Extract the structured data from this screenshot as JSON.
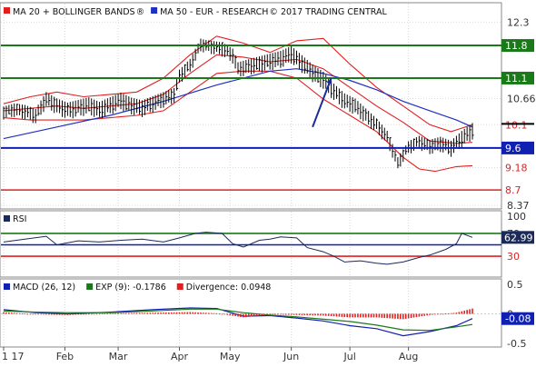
{
  "chart_data": [
    {
      "type": "line",
      "panel": "price",
      "legend": [
        {
          "label": "MA 20 + BOLLINGER BANDS",
          "symbol": "®",
          "color": "#e02020"
        },
        {
          "label": "MA 50 - EUR - RESEARCH",
          "symbol": "© 2017 TRADING CENTRAL",
          "color": "#2030c0"
        }
      ],
      "ylim": [
        8.37,
        12.6
      ],
      "y_ticks": [
        8.37,
        8.7,
        9.18,
        9.6,
        10.1,
        10.66,
        11.1,
        11.8,
        12.3
      ],
      "grid": true,
      "last_price": 9.96,
      "levels": [
        {
          "value": 11.8,
          "label": "11.8",
          "color": "#1a7a1a",
          "style": "box"
        },
        {
          "value": 11.1,
          "label": "11.1",
          "color": "#1a7a1a",
          "style": "box"
        },
        {
          "value": 10.1,
          "label": "10.1",
          "color": "#e02020",
          "style": "text"
        },
        {
          "value": 9.6,
          "label": "9.6",
          "color": "#1020b0",
          "style": "box"
        },
        {
          "value": 9.18,
          "label": "9.18",
          "color": "#e02020",
          "style": "text"
        },
        {
          "value": 8.7,
          "label": "8.7",
          "color": "#e02020",
          "style": "text"
        }
      ],
      "forecast_arrow": {
        "from_day": 116,
        "from_value": 10.05,
        "to_day": 123,
        "to_value": 11.1,
        "color": "#1a2a9a"
      },
      "series": [
        {
          "name": "Price",
          "key": "close",
          "color": "#000000",
          "points": [
            [
              0,
              10.4
            ],
            [
              4,
              10.45
            ],
            [
              8,
              10.4
            ],
            [
              12,
              10.3
            ],
            [
              16,
              10.65
            ],
            [
              20,
              10.5
            ],
            [
              24,
              10.4
            ],
            [
              28,
              10.45
            ],
            [
              32,
              10.5
            ],
            [
              36,
              10.4
            ],
            [
              40,
              10.5
            ],
            [
              44,
              10.6
            ],
            [
              48,
              10.5
            ],
            [
              52,
              10.45
            ],
            [
              56,
              10.55
            ],
            [
              60,
              10.65
            ],
            [
              64,
              10.75
            ],
            [
              66,
              11.15
            ],
            [
              70,
              11.4
            ],
            [
              74,
              11.85
            ],
            [
              78,
              11.8
            ],
            [
              82,
              11.75
            ],
            [
              86,
              11.6
            ],
            [
              88,
              11.3
            ],
            [
              92,
              11.35
            ],
            [
              96,
              11.4
            ],
            [
              100,
              11.45
            ],
            [
              104,
              11.5
            ],
            [
              108,
              11.6
            ],
            [
              112,
              11.4
            ],
            [
              116,
              11.2
            ],
            [
              120,
              11.05
            ],
            [
              124,
              10.8
            ],
            [
              128,
              10.6
            ],
            [
              132,
              10.5
            ],
            [
              136,
              10.3
            ],
            [
              140,
              10.1
            ],
            [
              144,
              9.85
            ],
            [
              148,
              9.3
            ],
            [
              152,
              9.65
            ],
            [
              156,
              9.75
            ],
            [
              160,
              9.65
            ],
            [
              164,
              9.7
            ],
            [
              168,
              9.6
            ],
            [
              172,
              9.8
            ],
            [
              176,
              9.96
            ]
          ]
        },
        {
          "name": "MA 20",
          "key": "ma20",
          "color": "#e02020",
          "points": [
            [
              0,
              10.4
            ],
            [
              10,
              10.45
            ],
            [
              20,
              10.5
            ],
            [
              30,
              10.45
            ],
            [
              40,
              10.5
            ],
            [
              50,
              10.55
            ],
            [
              60,
              10.75
            ],
            [
              70,
              11.2
            ],
            [
              80,
              11.6
            ],
            [
              90,
              11.55
            ],
            [
              100,
              11.45
            ],
            [
              110,
              11.5
            ],
            [
              120,
              11.3
            ],
            [
              130,
              10.9
            ],
            [
              140,
              10.5
            ],
            [
              150,
              10.15
            ],
            [
              160,
              9.75
            ],
            [
              170,
              9.7
            ],
            [
              176,
              9.72
            ]
          ]
        },
        {
          "name": "Upper band",
          "key": "upper",
          "color": "#e02020",
          "points": [
            [
              0,
              10.55
            ],
            [
              10,
              10.7
            ],
            [
              20,
              10.8
            ],
            [
              30,
              10.7
            ],
            [
              40,
              10.75
            ],
            [
              50,
              10.8
            ],
            [
              60,
              11.1
            ],
            [
              70,
              11.6
            ],
            [
              80,
              12.0
            ],
            [
              90,
              11.85
            ],
            [
              100,
              11.65
            ],
            [
              110,
              11.9
            ],
            [
              120,
              11.95
            ],
            [
              130,
              11.4
            ],
            [
              140,
              10.9
            ],
            [
              150,
              10.5
            ],
            [
              160,
              10.1
            ],
            [
              168,
              9.95
            ],
            [
              176,
              10.1
            ]
          ]
        },
        {
          "name": "Lower band",
          "key": "lower",
          "color": "#e02020",
          "points": [
            [
              0,
              10.25
            ],
            [
              10,
              10.2
            ],
            [
              20,
              10.2
            ],
            [
              30,
              10.2
            ],
            [
              40,
              10.25
            ],
            [
              50,
              10.3
            ],
            [
              60,
              10.4
            ],
            [
              70,
              10.8
            ],
            [
              80,
              11.2
            ],
            [
              90,
              11.25
            ],
            [
              100,
              11.25
            ],
            [
              110,
              11.1
            ],
            [
              120,
              10.65
            ],
            [
              130,
              10.3
            ],
            [
              140,
              9.95
            ],
            [
              150,
              9.4
            ],
            [
              156,
              9.15
            ],
            [
              162,
              9.1
            ],
            [
              170,
              9.2
            ],
            [
              176,
              9.22
            ]
          ]
        },
        {
          "name": "MA 50",
          "key": "ma50",
          "color": "#2030c0",
          "points": [
            [
              0,
              9.8
            ],
            [
              20,
              10.05
            ],
            [
              40,
              10.3
            ],
            [
              60,
              10.6
            ],
            [
              80,
              10.95
            ],
            [
              100,
              11.25
            ],
            [
              110,
              11.3
            ],
            [
              120,
              11.2
            ],
            [
              130,
              11.05
            ],
            [
              140,
              10.85
            ],
            [
              150,
              10.6
            ],
            [
              160,
              10.4
            ],
            [
              170,
              10.2
            ],
            [
              176,
              10.05
            ]
          ]
        }
      ]
    },
    {
      "type": "line",
      "panel": "rsi",
      "legend": [
        {
          "label": "RSI",
          "color": "#1a2a5a"
        }
      ],
      "ylim": [
        0,
        100
      ],
      "y_ticks": [
        0,
        30,
        50,
        70,
        100
      ],
      "levels": [
        {
          "value": 70,
          "color": "#1a7a1a"
        },
        {
          "value": 50,
          "color": "#1020b0"
        },
        {
          "value": 30,
          "color": "#e02020"
        }
      ],
      "last_value": 62.99,
      "last_value_label": "62.99",
      "series": [
        {
          "name": "RSI",
          "color": "#1a2a5a",
          "points": [
            [
              0,
              55
            ],
            [
              8,
              60
            ],
            [
              16,
              65
            ],
            [
              20,
              50
            ],
            [
              28,
              57
            ],
            [
              36,
              55
            ],
            [
              44,
              58
            ],
            [
              52,
              60
            ],
            [
              60,
              55
            ],
            [
              66,
              62
            ],
            [
              72,
              70
            ],
            [
              76,
              72
            ],
            [
              82,
              70
            ],
            [
              86,
              52
            ],
            [
              90,
              46
            ],
            [
              96,
              58
            ],
            [
              100,
              60
            ],
            [
              104,
              64
            ],
            [
              110,
              62
            ],
            [
              114,
              45
            ],
            [
              120,
              38
            ],
            [
              124,
              30
            ],
            [
              128,
              20
            ],
            [
              134,
              22
            ],
            [
              140,
              18
            ],
            [
              144,
              16
            ],
            [
              150,
              20
            ],
            [
              156,
              28
            ],
            [
              160,
              32
            ],
            [
              166,
              42
            ],
            [
              170,
              52
            ],
            [
              172,
              70
            ],
            [
              176,
              63
            ]
          ]
        }
      ]
    },
    {
      "type": "bar",
      "panel": "macd",
      "legend": [
        {
          "label": "MACD (26, 12)",
          "color": "#1020b0"
        },
        {
          "label": "EXP (9): -0.1786",
          "color": "#1a7a1a"
        },
        {
          "label": "Divergence: 0.0948",
          "color": "#e02020"
        }
      ],
      "ylim": [
        -0.5,
        0.5
      ],
      "y_ticks": [
        -0.5,
        0,
        0.5
      ],
      "last_value": -0.08,
      "last_value_label": "-0.08",
      "series": [
        {
          "name": "MACD (26, 12)",
          "key": "macd",
          "color": "#1020b0",
          "points": [
            [
              0,
              0.07
            ],
            [
              12,
              0.02
            ],
            [
              24,
              0.0
            ],
            [
              40,
              0.03
            ],
            [
              56,
              0.07
            ],
            [
              70,
              0.1
            ],
            [
              80,
              0.09
            ],
            [
              90,
              -0.04
            ],
            [
              100,
              -0.03
            ],
            [
              110,
              -0.07
            ],
            [
              120,
              -0.12
            ],
            [
              130,
              -0.2
            ],
            [
              140,
              -0.25
            ],
            [
              150,
              -0.37
            ],
            [
              160,
              -0.3
            ],
            [
              170,
              -0.2
            ],
            [
              176,
              -0.08
            ]
          ]
        },
        {
          "name": "EXP (9)",
          "key": "exp",
          "color": "#1a7a1a",
          "points": [
            [
              0,
              0.05
            ],
            [
              12,
              0.03
            ],
            [
              24,
              0.02
            ],
            [
              40,
              0.02
            ],
            [
              56,
              0.05
            ],
            [
              70,
              0.08
            ],
            [
              80,
              0.08
            ],
            [
              90,
              0.02
            ],
            [
              100,
              -0.02
            ],
            [
              110,
              -0.05
            ],
            [
              120,
              -0.09
            ],
            [
              130,
              -0.13
            ],
            [
              140,
              -0.19
            ],
            [
              150,
              -0.27
            ],
            [
              160,
              -0.28
            ],
            [
              170,
              -0.22
            ],
            [
              176,
              -0.18
            ]
          ]
        },
        {
          "name": "Divergence",
          "key": "div",
          "color": "#e02020",
          "bars": true,
          "points": [
            [
              0,
              0.03
            ],
            [
              12,
              -0.01
            ],
            [
              24,
              -0.02
            ],
            [
              40,
              0.01
            ],
            [
              56,
              0.02
            ],
            [
              70,
              0.03
            ],
            [
              80,
              0.01
            ],
            [
              90,
              -0.06
            ],
            [
              100,
              -0.01
            ],
            [
              110,
              -0.02
            ],
            [
              120,
              -0.03
            ],
            [
              130,
              -0.06
            ],
            [
              140,
              -0.06
            ],
            [
              150,
              -0.09
            ],
            [
              160,
              -0.02
            ],
            [
              170,
              0.02
            ],
            [
              176,
              0.09
            ]
          ]
        }
      ]
    }
  ],
  "x_axis": {
    "labels": [
      {
        "text": "1 17",
        "day": 0
      },
      {
        "text": "Feb",
        "day": 23
      },
      {
        "text": "Mar",
        "day": 43
      },
      {
        "text": "Apr",
        "day": 66
      },
      {
        "text": "May",
        "day": 85
      },
      {
        "text": "Jun",
        "day": 108
      },
      {
        "text": "Jul",
        "day": 130
      },
      {
        "text": "Aug",
        "day": 152
      }
    ]
  }
}
